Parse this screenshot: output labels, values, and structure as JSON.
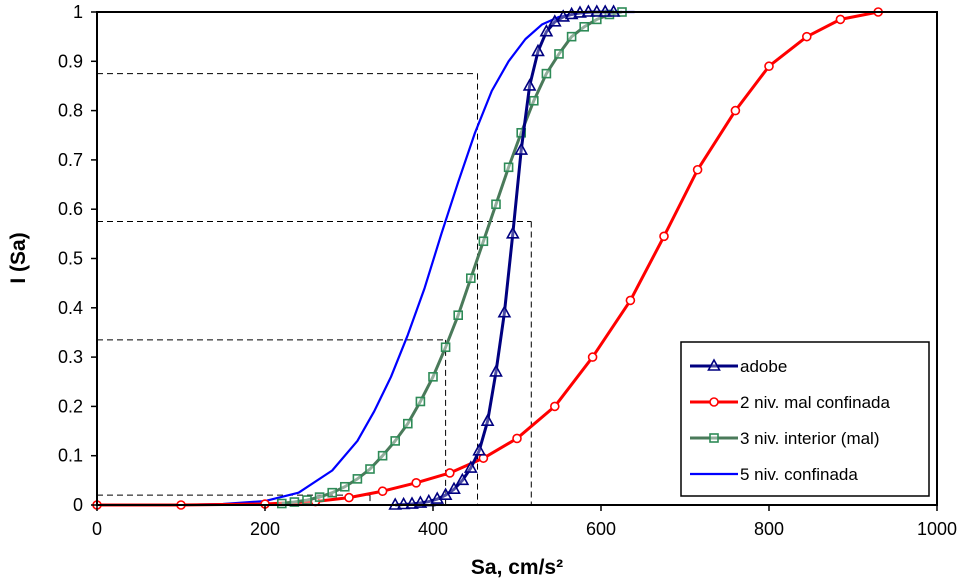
{
  "chart_data": {
    "type": "line",
    "xlabel": "Sa, cm/s²",
    "ylabel": "I (Sa)",
    "xlim": [
      0,
      1000
    ],
    "ylim": [
      0,
      1
    ],
    "x_ticks": [
      "0",
      "200",
      "400",
      "600",
      "800",
      "1000"
    ],
    "y_ticks": [
      "0",
      "0.1",
      "0.2",
      "0.3",
      "0.4",
      "0.5",
      "0.6",
      "0.7",
      "0.8",
      "0.9",
      "1"
    ],
    "grid": false,
    "legend_position": "bottom-right",
    "series": [
      {
        "name": "adobe",
        "color": "#000080",
        "marker": "triangle",
        "x": [
          355,
          365,
          375,
          385,
          395,
          405,
          415,
          425,
          435,
          445,
          455,
          465,
          475,
          485,
          495,
          505,
          515,
          525,
          535,
          545,
          555,
          565,
          575,
          585,
          595,
          605,
          615
        ],
        "y": [
          0.0,
          0.001,
          0.002,
          0.004,
          0.007,
          0.012,
          0.02,
          0.032,
          0.05,
          0.075,
          0.11,
          0.17,
          0.27,
          0.39,
          0.55,
          0.72,
          0.85,
          0.92,
          0.96,
          0.98,
          0.99,
          0.995,
          0.998,
          1.0,
          1.0,
          1.0,
          1.0
        ]
      },
      {
        "name": "2 niv. mal confinada",
        "color": "#ff0000",
        "marker": "circle",
        "x": [
          0,
          100,
          200,
          260,
          300,
          340,
          380,
          420,
          460,
          500,
          545,
          590,
          635,
          675,
          715,
          760,
          800,
          845,
          885,
          930
        ],
        "y": [
          0.0,
          0.0,
          0.002,
          0.007,
          0.015,
          0.028,
          0.045,
          0.065,
          0.095,
          0.135,
          0.2,
          0.3,
          0.415,
          0.545,
          0.68,
          0.8,
          0.89,
          0.95,
          0.985,
          1.0
        ]
      },
      {
        "name": "3 niv. interior (mal)",
        "color": "#2e8b57",
        "marker": "square",
        "x": [
          220,
          235,
          250,
          265,
          280,
          295,
          310,
          325,
          340,
          355,
          370,
          385,
          400,
          415,
          430,
          445,
          460,
          475,
          490,
          505,
          520,
          535,
          550,
          565,
          580,
          595,
          610,
          625
        ],
        "y": [
          0.003,
          0.006,
          0.01,
          0.016,
          0.025,
          0.037,
          0.053,
          0.073,
          0.1,
          0.13,
          0.165,
          0.21,
          0.26,
          0.32,
          0.385,
          0.46,
          0.535,
          0.61,
          0.685,
          0.755,
          0.82,
          0.875,
          0.915,
          0.95,
          0.97,
          0.985,
          0.995,
          1.0
        ]
      },
      {
        "name": "5 niv. confinada",
        "color": "#0000ff",
        "marker": "none",
        "x": [
          0,
          100,
          150,
          200,
          240,
          280,
          310,
          330,
          350,
          370,
          390,
          410,
          430,
          450,
          470,
          490,
          510,
          530,
          550,
          570,
          600,
          640
        ],
        "y": [
          0.0,
          0.0,
          0.002,
          0.008,
          0.025,
          0.07,
          0.13,
          0.19,
          0.26,
          0.345,
          0.44,
          0.55,
          0.655,
          0.755,
          0.84,
          0.9,
          0.945,
          0.975,
          0.99,
          0.997,
          1.0,
          1.0
        ]
      }
    ],
    "reference_lines": [
      {
        "x": 325,
        "y": 0.02
      },
      {
        "x": 415,
        "y": 0.335
      },
      {
        "x": 453,
        "y": 0.875
      },
      {
        "x": 517,
        "y": 0.575
      }
    ]
  }
}
